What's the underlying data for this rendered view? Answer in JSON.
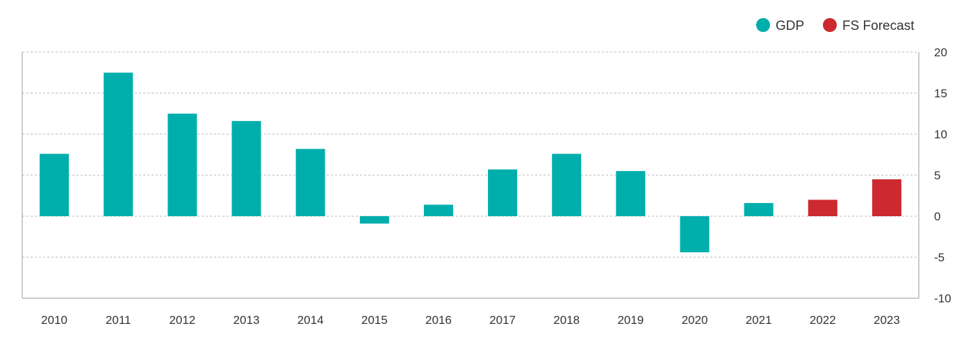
{
  "chart_data": {
    "type": "bar",
    "categories": [
      "2010",
      "2011",
      "2012",
      "2013",
      "2014",
      "2015",
      "2016",
      "2017",
      "2018",
      "2019",
      "2020",
      "2021",
      "2022",
      "2023"
    ],
    "values": [
      7.6,
      17.5,
      12.5,
      11.6,
      8.2,
      -0.9,
      1.4,
      5.7,
      7.6,
      5.5,
      -4.4,
      1.6,
      2.0,
      4.5
    ],
    "series_by_bar": [
      "GDP",
      "GDP",
      "GDP",
      "GDP",
      "GDP",
      "GDP",
      "GDP",
      "GDP",
      "GDP",
      "GDP",
      "GDP",
      "GDP",
      "FS Forecast",
      "FS Forecast"
    ],
    "series": [
      {
        "name": "GDP",
        "color": "#00aeac"
      },
      {
        "name": "FS Forecast",
        "color": "#cc2a2e"
      }
    ],
    "title": "",
    "xlabel": "",
    "ylabel": "",
    "ylim": [
      -10,
      20
    ],
    "y_ticks": [
      20,
      15,
      10,
      5,
      0,
      -5,
      -10
    ],
    "y_axis_side": "right",
    "grid": "horizontal dashed",
    "legend_position": "top-right"
  },
  "legend": {
    "gdp_label": "GDP",
    "forecast_label": "FS Forecast"
  },
  "colors": {
    "gdp": "#00aeac",
    "forecast": "#cc2a2e",
    "grid": "#b8b8b8",
    "axis": "#9a9a9a",
    "text": "#333333"
  }
}
